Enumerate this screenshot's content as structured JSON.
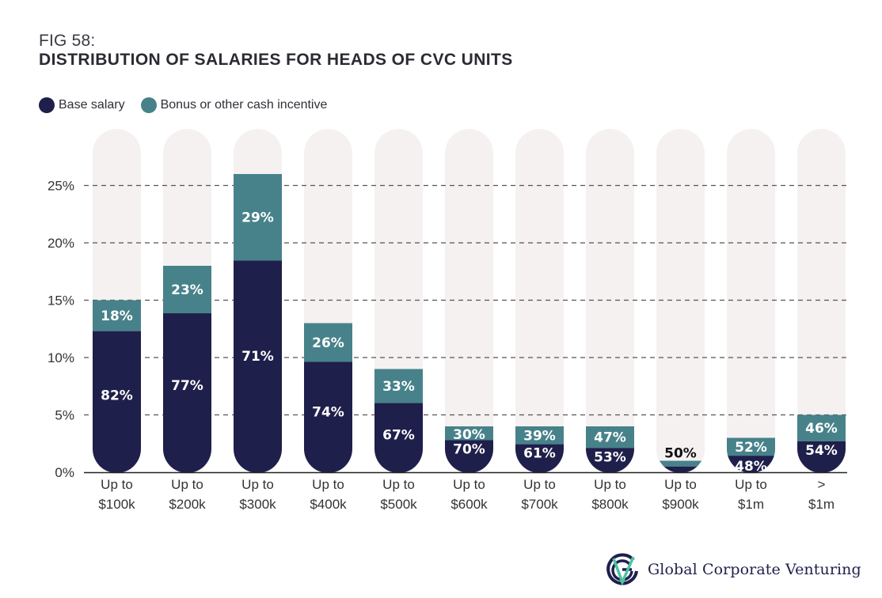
{
  "header": {
    "fig_label": "FIG 58:",
    "title": "DISTRIBUTION OF SALARIES FOR HEADS OF CVC UNITS"
  },
  "colors": {
    "base": "#1f1f4b",
    "bonus": "#47828a",
    "pill": "#f5f1f1",
    "grid": "#555555",
    "axis": "#222222",
    "text_dark": "#2b2b33",
    "label_light": "#ffffff"
  },
  "legend": [
    {
      "label": "Base salary",
      "color": "#1f1f4b"
    },
    {
      "label": "Bonus or other cash incentive",
      "color": "#47828a"
    }
  ],
  "chart_data": {
    "type": "bar",
    "stacked": true,
    "title": "DISTRIBUTION OF SALARIES FOR HEADS OF CVC UNITS",
    "xlabel": "",
    "ylabel": "",
    "ylim": [
      0,
      27
    ],
    "yticks": [
      0,
      5,
      10,
      15,
      20,
      25
    ],
    "ytick_labels": [
      "0%",
      "5%",
      "10%",
      "15%",
      "20%",
      "25%"
    ],
    "grid": true,
    "legend_position": "top-left",
    "categories": [
      [
        "Up to",
        "$100k"
      ],
      [
        "Up to",
        "$200k"
      ],
      [
        "Up to",
        "$300k"
      ],
      [
        "Up to",
        "$400k"
      ],
      [
        "Up to",
        "$500k"
      ],
      [
        "Up to",
        "$600k"
      ],
      [
        "Up to",
        "$700k"
      ],
      [
        "Up to",
        "$800k"
      ],
      [
        "Up to",
        "$900k"
      ],
      [
        "Up to",
        "$1m"
      ],
      [
        ">",
        "$1m"
      ]
    ],
    "totals": [
      15,
      18,
      26,
      13,
      9,
      4,
      4,
      4,
      1,
      3,
      5
    ],
    "series": [
      {
        "name": "Base salary",
        "share_labels": [
          "82%",
          "77%",
          "71%",
          "74%",
          "67%",
          "70%",
          "61%",
          "53%",
          "",
          "48%",
          "54%"
        ],
        "shares": [
          82,
          77,
          71,
          74,
          67,
          70,
          61,
          53,
          50,
          48,
          54
        ]
      },
      {
        "name": "Bonus or other cash incentive",
        "share_labels": [
          "18%",
          "23%",
          "29%",
          "26%",
          "33%",
          "30%",
          "39%",
          "47%",
          "50%",
          "52%",
          "46%"
        ],
        "shares": [
          18,
          23,
          29,
          26,
          33,
          30,
          39,
          47,
          50,
          52,
          46
        ]
      }
    ]
  },
  "logo": {
    "text": "Global Corporate Venturing"
  }
}
